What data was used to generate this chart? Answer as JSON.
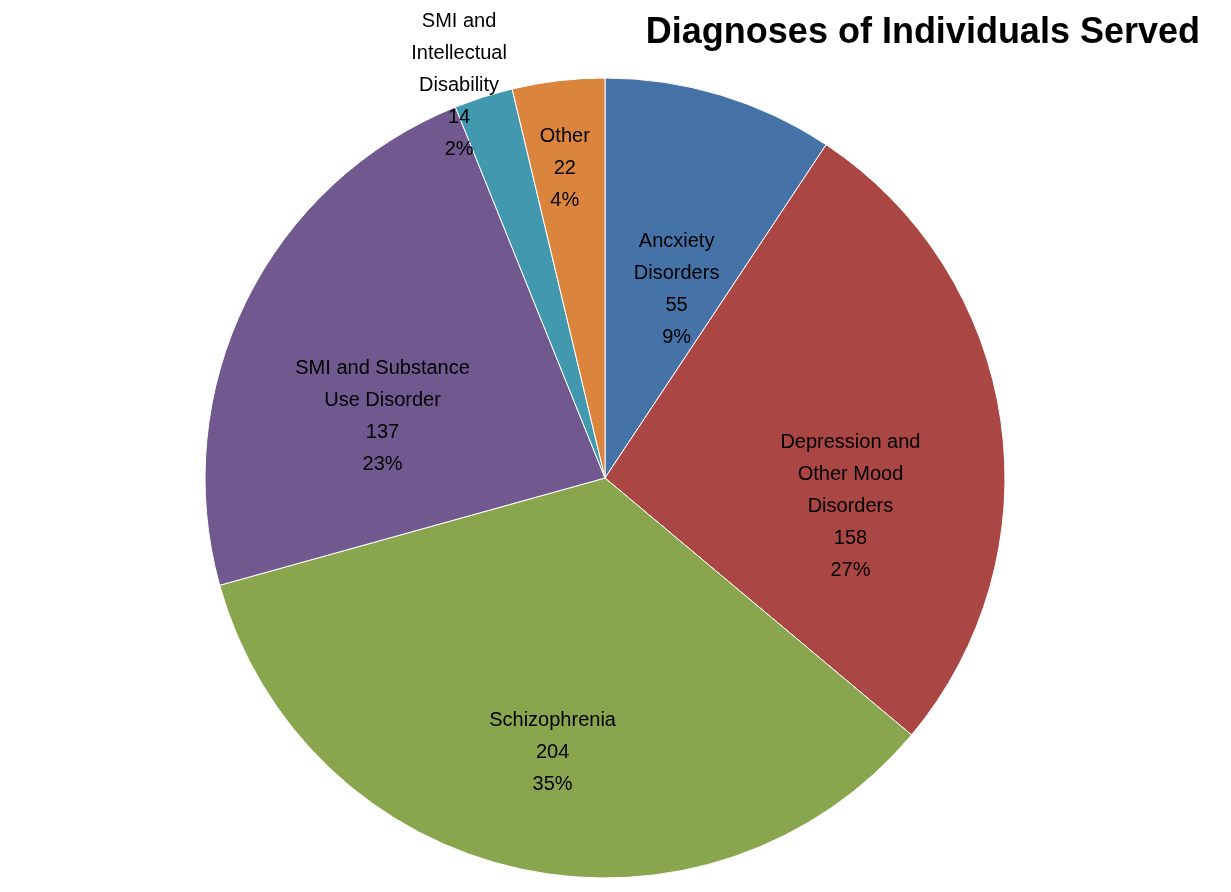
{
  "chart_data": {
    "type": "pie",
    "title": "Diagnoses of Individuals Served",
    "categories": [
      "Ancxiety Disorders",
      "Depression and Other Mood Disorders",
      "Schizophrenia",
      "SMI and Substance Use Disorder",
      "SMI and Intellectual Disability",
      "Other"
    ],
    "values": [
      55,
      158,
      204,
      137,
      14,
      22
    ],
    "colors": [
      "#4572a7",
      "#aa4643",
      "#89a54e",
      "#71588f",
      "#4198af",
      "#db843d"
    ],
    "value_labels": [
      "55\n9%",
      "158\n27%",
      "204\n35%",
      "137\n23%",
      "14\n2%",
      "22\n4%"
    ],
    "legend": false
  }
}
